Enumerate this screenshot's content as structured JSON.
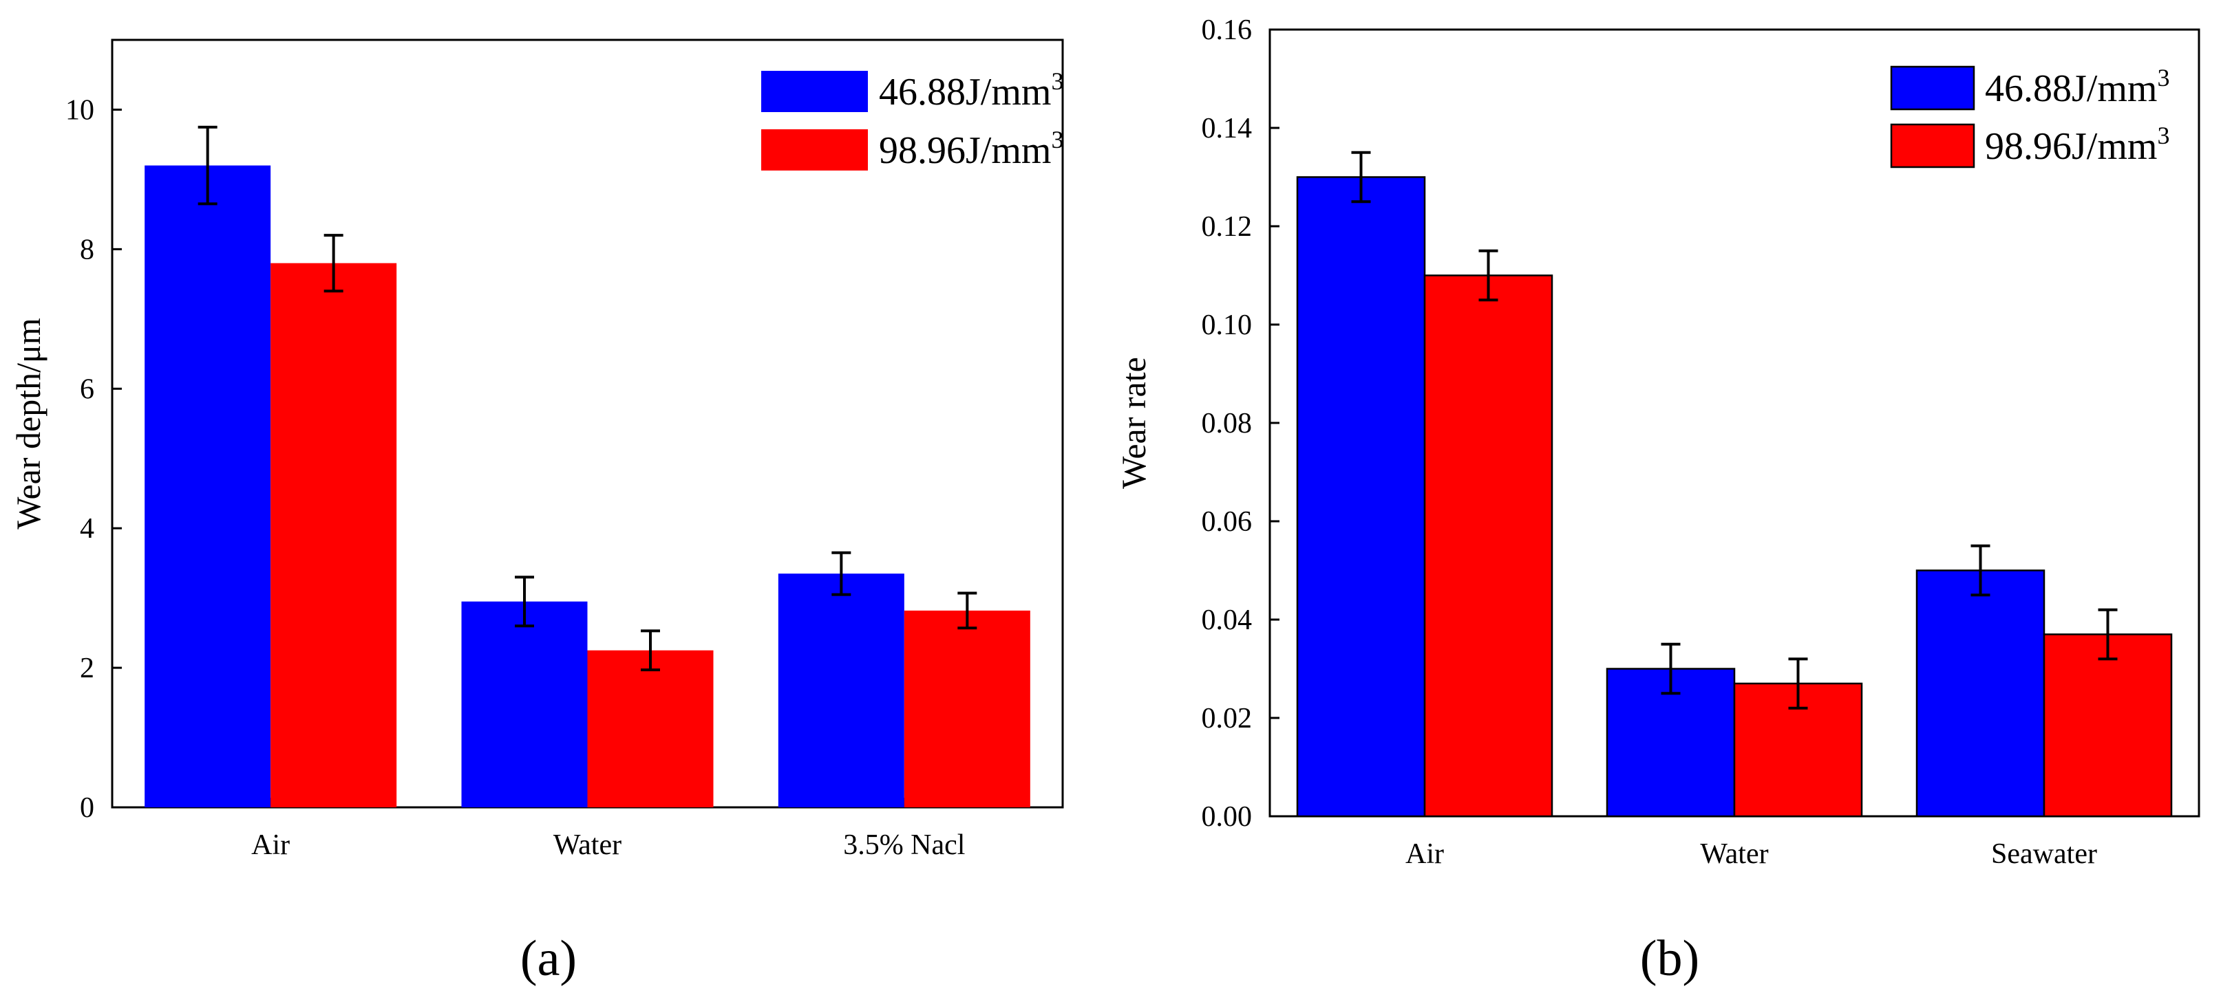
{
  "panel_labels": {
    "a": "(a)",
    "b": "(b)"
  },
  "colors": {
    "series1": "#0000ff",
    "series2": "#ff0000",
    "axis": "#000000"
  },
  "chart_data": [
    {
      "type": "bar",
      "panel": "a",
      "ylabel": "Wear depth/μm",
      "xlabel": "",
      "categories": [
        "Air",
        "Water",
        "3.5% Nacl"
      ],
      "ylim": [
        0,
        11
      ],
      "yticks": [
        0,
        2,
        4,
        6,
        8,
        10
      ],
      "ytick_labels": [
        "0",
        "2",
        "4",
        "6",
        "8",
        "10"
      ],
      "grid": false,
      "legend_position": "top-right",
      "series": [
        {
          "name": "46.88J/mm",
          "superscript": "3",
          "values": [
            9.2,
            2.95,
            3.35
          ],
          "errors": [
            0.55,
            0.35,
            0.3
          ]
        },
        {
          "name": "98.96J/mm",
          "superscript": "3",
          "values": [
            7.8,
            2.25,
            2.82
          ],
          "errors": [
            0.4,
            0.28,
            0.25
          ]
        }
      ]
    },
    {
      "type": "bar",
      "panel": "b",
      "ylabel": "Wear rate",
      "xlabel": "",
      "categories": [
        "Air",
        "Water",
        "Seawater"
      ],
      "ylim": [
        0,
        0.16
      ],
      "yticks": [
        0,
        0.02,
        0.04,
        0.06,
        0.08,
        0.1,
        0.12,
        0.14,
        0.16
      ],
      "ytick_labels": [
        "0.00",
        "0.02",
        "0.04",
        "0.06",
        "0.08",
        "0.10",
        "0.12",
        "0.14",
        "0.16"
      ],
      "grid": false,
      "legend_position": "top-right",
      "series": [
        {
          "name": "46.88J/mm",
          "superscript": "3",
          "values": [
            0.13,
            0.03,
            0.05
          ],
          "errors": [
            0.005,
            0.005,
            0.005
          ]
        },
        {
          "name": "98.96J/mm",
          "superscript": "3",
          "values": [
            0.11,
            0.027,
            0.037
          ],
          "errors": [
            0.005,
            0.005,
            0.005
          ]
        }
      ]
    }
  ]
}
